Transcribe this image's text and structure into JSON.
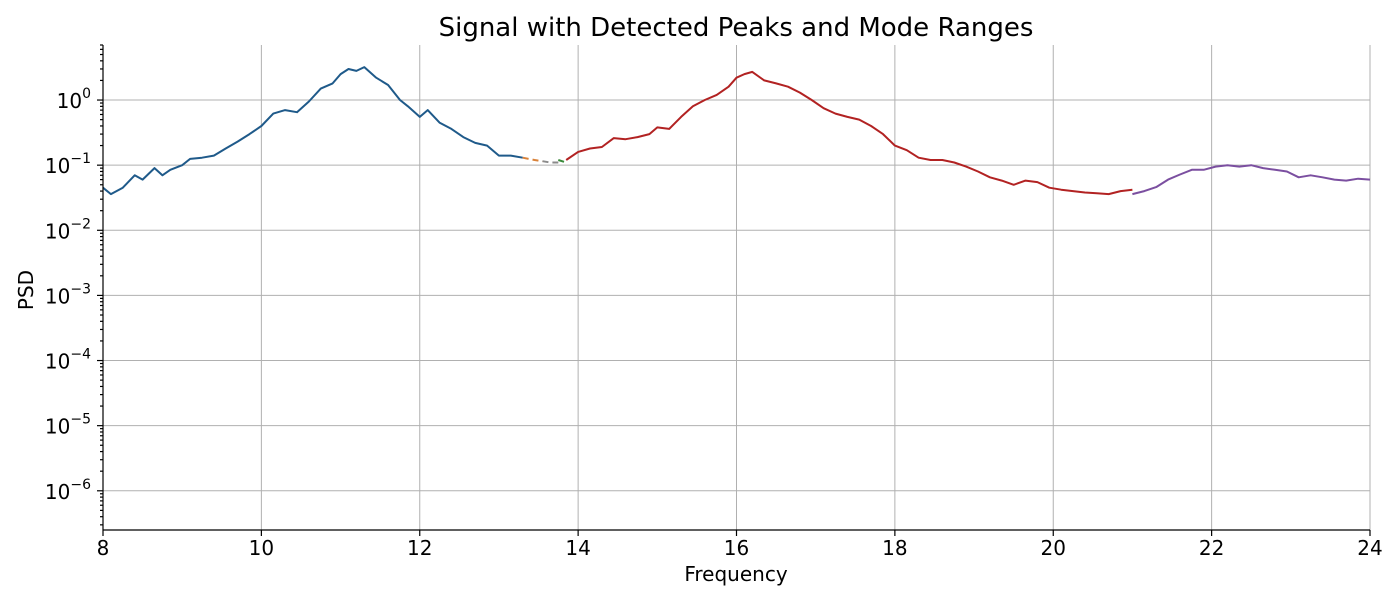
{
  "chart_data": {
    "type": "line",
    "title": "Signal with Detected Peaks and Mode Ranges",
    "xlabel": "Frequency",
    "ylabel": "PSD",
    "xlim": [
      8,
      24
    ],
    "ylim": [
      2.5e-07,
      7
    ],
    "y_scale": "log",
    "grid": true,
    "x_ticks": [
      "8",
      "10",
      "12",
      "14",
      "16",
      "18",
      "20",
      "22",
      "24"
    ],
    "y_ticks": [
      {
        "value": 1e-06,
        "base": "10",
        "exp": "−6"
      },
      {
        "value": 1e-05,
        "base": "10",
        "exp": "−5"
      },
      {
        "value": 0.0001,
        "base": "10",
        "exp": "−4"
      },
      {
        "value": 0.001,
        "base": "10",
        "exp": "−3"
      },
      {
        "value": 0.01,
        "base": "10",
        "exp": "−2"
      },
      {
        "value": 0.1,
        "base": "10",
        "exp": "−1"
      },
      {
        "value": 1,
        "base": "10",
        "exp": "0"
      }
    ],
    "series": [
      {
        "color": "#1f5a8a",
        "dashed": false,
        "x": [
          8.0,
          8.1,
          8.25,
          8.4,
          8.5,
          8.65,
          8.75,
          8.85,
          9.0,
          9.1,
          9.25,
          9.4,
          9.55,
          9.7,
          9.85,
          10.0,
          10.15,
          10.3,
          10.45,
          10.6,
          10.75,
          10.9,
          11.0,
          11.1,
          11.2,
          11.3,
          11.45,
          11.6,
          11.75,
          11.85,
          12.0,
          12.1,
          12.25,
          12.4,
          12.55,
          12.7,
          12.85,
          13.0,
          13.15,
          13.3
        ],
        "y": [
          0.045,
          0.036,
          0.045,
          0.07,
          0.06,
          0.09,
          0.07,
          0.085,
          0.1,
          0.125,
          0.13,
          0.14,
          0.18,
          0.23,
          0.3,
          0.4,
          0.62,
          0.7,
          0.65,
          0.95,
          1.5,
          1.8,
          2.5,
          3.0,
          2.8,
          3.2,
          2.2,
          1.7,
          1.0,
          0.8,
          0.55,
          0.7,
          0.45,
          0.36,
          0.27,
          0.22,
          0.2,
          0.14,
          0.14,
          0.13
        ]
      },
      {
        "color": "#d9823a",
        "dashed": true,
        "x": [
          13.3,
          13.45,
          13.55
        ],
        "y": [
          0.13,
          0.12,
          0.115
        ]
      },
      {
        "color": "#8a8a8a",
        "dashed": true,
        "x": [
          13.55,
          13.65,
          13.75
        ],
        "y": [
          0.115,
          0.11,
          0.11
        ]
      },
      {
        "color": "#3a8a3a",
        "dashed": true,
        "x": [
          13.75,
          13.85
        ],
        "y": [
          0.12,
          0.11
        ]
      },
      {
        "color": "#b22222",
        "dashed": false,
        "x": [
          13.85,
          14.0,
          14.15,
          14.3,
          14.45,
          14.6,
          14.75,
          14.9,
          15.0,
          15.15,
          15.3,
          15.45,
          15.6,
          15.75,
          15.9,
          16.0,
          16.1,
          16.2,
          16.35,
          16.5,
          16.65,
          16.8,
          16.95,
          17.1,
          17.25,
          17.4,
          17.55,
          17.7,
          17.85,
          18.0,
          18.15,
          18.3,
          18.45,
          18.6,
          18.75,
          18.9,
          19.05,
          19.2,
          19.35,
          19.5,
          19.65,
          19.8,
          19.95,
          20.1,
          20.25,
          20.4,
          20.55,
          20.7,
          20.85,
          21.0
        ],
        "y": [
          0.12,
          0.16,
          0.18,
          0.19,
          0.26,
          0.25,
          0.27,
          0.3,
          0.38,
          0.36,
          0.55,
          0.8,
          1.0,
          1.2,
          1.6,
          2.2,
          2.5,
          2.7,
          2.0,
          1.8,
          1.6,
          1.3,
          1.0,
          0.75,
          0.62,
          0.55,
          0.5,
          0.4,
          0.3,
          0.2,
          0.17,
          0.13,
          0.12,
          0.12,
          0.11,
          0.095,
          0.08,
          0.065,
          0.058,
          0.05,
          0.058,
          0.055,
          0.045,
          0.042,
          0.04,
          0.038,
          0.037,
          0.036,
          0.04,
          0.042
        ]
      },
      {
        "color": "#7b4fa0",
        "dashed": false,
        "x": [
          21.0,
          21.15,
          21.3,
          21.45,
          21.6,
          21.75,
          21.9,
          22.05,
          22.2,
          22.35,
          22.5,
          22.65,
          22.8,
          22.95,
          23.1,
          23.25,
          23.4,
          23.55,
          23.7,
          23.85,
          24.0
        ],
        "y": [
          0.036,
          0.04,
          0.046,
          0.06,
          0.072,
          0.085,
          0.085,
          0.095,
          0.1,
          0.095,
          0.1,
          0.09,
          0.085,
          0.08,
          0.065,
          0.07,
          0.065,
          0.06,
          0.058,
          0.062,
          0.06
        ]
      }
    ]
  }
}
